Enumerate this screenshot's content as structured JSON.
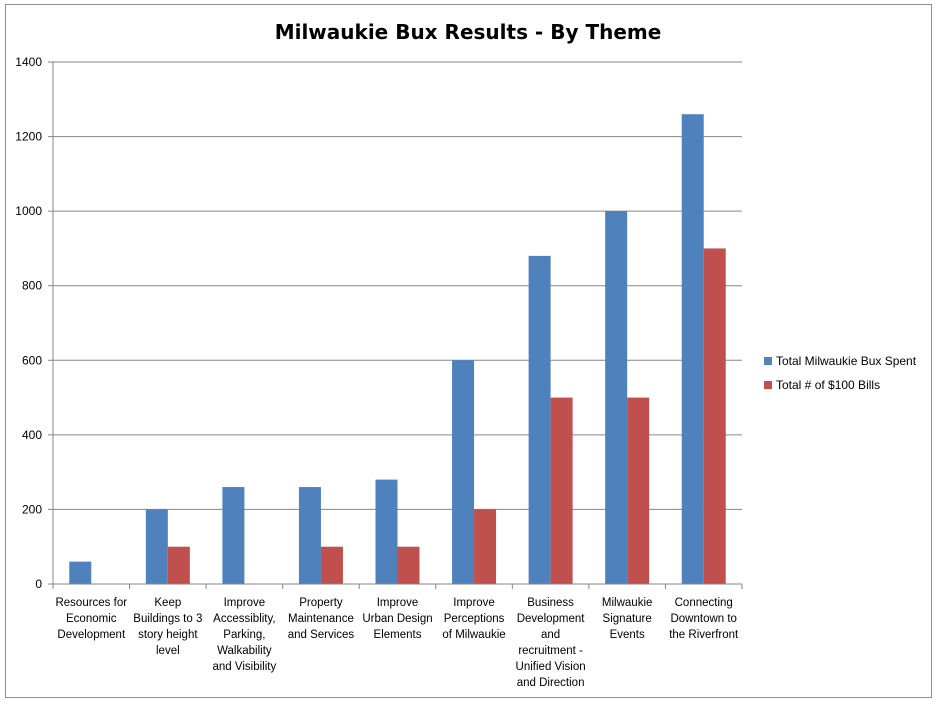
{
  "chart_data": {
    "type": "bar",
    "title": "Milwaukie Bux Results - By Theme",
    "xlabel": "",
    "ylabel": "",
    "ylim": [
      0,
      1400
    ],
    "yticks": [
      0,
      200,
      400,
      600,
      800,
      1000,
      1200,
      1400
    ],
    "grid": true,
    "legend_position": "right",
    "categories": [
      [
        "Resources for",
        "Economic",
        "Development"
      ],
      [
        "Keep",
        "Buildings to 3",
        "story height",
        "level"
      ],
      [
        "Improve",
        "Accessiblity,",
        "Parking,",
        "Walkability",
        "and Visibility"
      ],
      [
        "Property",
        "Maintenance",
        "and Services"
      ],
      [
        "Improve",
        "Urban Design",
        "Elements"
      ],
      [
        "Improve",
        "Perceptions",
        "of Milwaukie"
      ],
      [
        "Business",
        "Development",
        "and",
        "recruitment -",
        "Unified Vision",
        "and Direction"
      ],
      [
        "Milwaukie",
        "Signature",
        "Events"
      ],
      [
        "Connecting",
        "Downtown to",
        "the Riverfront"
      ]
    ],
    "series": [
      {
        "name": "Total Milwaukie  Bux Spent",
        "color": "#4f81bd",
        "values": [
          60,
          200,
          260,
          260,
          280,
          600,
          880,
          1000,
          1260
        ]
      },
      {
        "name": "Total # of $100 Bills",
        "color": "#c0504d",
        "values": [
          0,
          100,
          0,
          100,
          100,
          200,
          500,
          500,
          900
        ]
      }
    ]
  }
}
